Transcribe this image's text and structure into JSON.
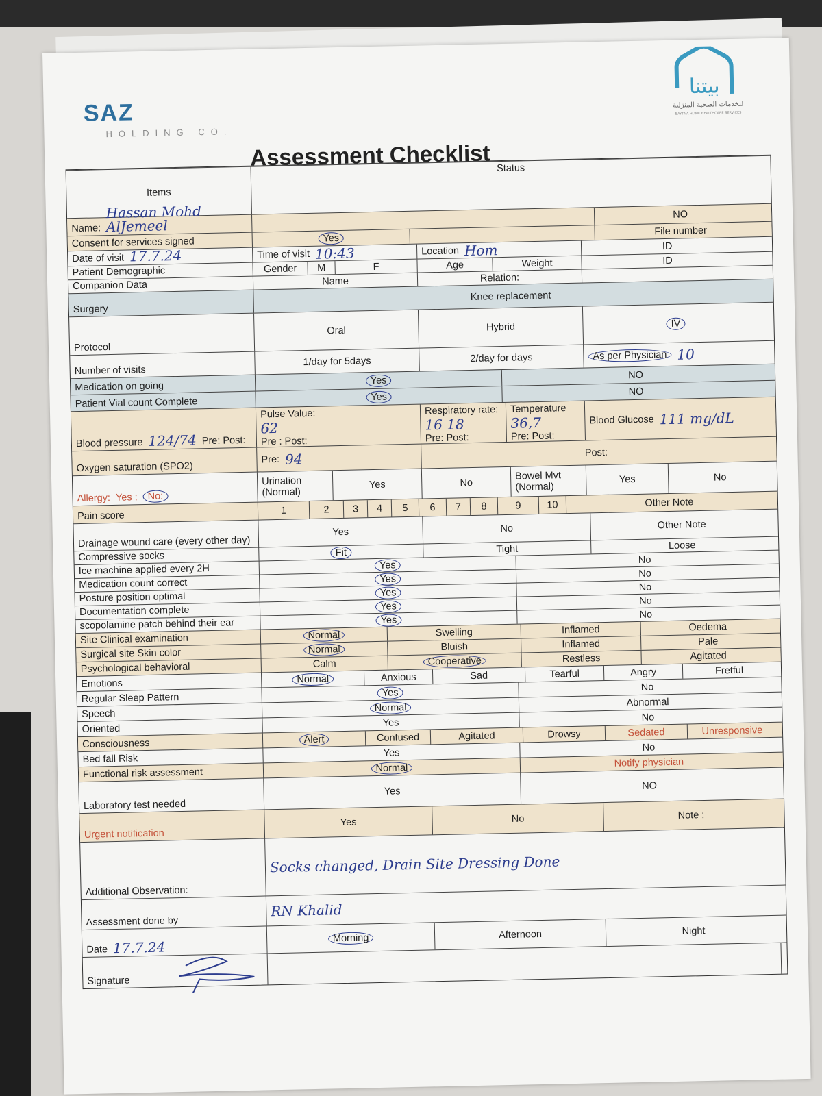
{
  "header": {
    "company": "SAZ",
    "company_sub": "HOLDING CO.",
    "partner_logo_text": "بيتنا للخدمات الصحية المنزلية BAYTNA HOME HEALTHCARE SERVICES",
    "title": "Assessment Checklist",
    "col_items": "Items",
    "col_status": "Status"
  },
  "colors": {
    "handwriting": "#2d3d8e",
    "beige": "#efe3cc",
    "blue": "#d3dde0",
    "warning": "#c4523a",
    "brand": "#2e6f9e"
  },
  "rows": [
    {
      "label": "Name:",
      "label_hw": "Hassan Mohd AlJemeel",
      "bg": "beige",
      "cells": [
        {
          "text": ""
        },
        {
          "text": "NO"
        }
      ]
    },
    {
      "label": "Consent for services signed",
      "bg": "beige",
      "cells": [
        {
          "text": "Yes",
          "circled": true
        },
        {
          "text": ""
        },
        {
          "text": "File number"
        }
      ]
    },
    {
      "label": "Date of visit",
      "label_hw": "17.7.24",
      "cells": [
        {
          "text": "Time of visit",
          "hw": "10:43"
        },
        {
          "text": "Location",
          "hw": "Hom"
        },
        {
          "text": "ID"
        }
      ]
    },
    {
      "label": "Patient Demographic",
      "cells": [
        {
          "text": "Gender"
        },
        {
          "text": "M"
        },
        {
          "text": "F"
        },
        {
          "text": "Age"
        },
        {
          "text": "Weight"
        },
        {
          "text": "ID"
        }
      ]
    },
    {
      "label": "Companion Data",
      "cells": [
        {
          "text": "Name"
        },
        {
          "text": "Relation:"
        },
        {
          "text": ""
        }
      ]
    },
    {
      "label": "Surgery",
      "bg": "blue",
      "cells": [
        {
          "text": "Knee replacement"
        }
      ]
    },
    {
      "label": "Protocol",
      "cells": [
        {
          "text": "Oral"
        },
        {
          "text": "Hybrid"
        },
        {
          "text": "IV",
          "circled": true
        }
      ]
    },
    {
      "label": "Number of visits",
      "cells": [
        {
          "text": "1/day for 5days"
        },
        {
          "text": "2/day  for   days"
        },
        {
          "text": "As per Physician",
          "circled": true,
          "hw": "10"
        }
      ]
    },
    {
      "label": "Medication on going",
      "bg": "blue",
      "cells": [
        {
          "text": "Yes",
          "circled": true
        },
        {
          "text": "NO"
        }
      ]
    },
    {
      "label": "Patient Vial count Complete",
      "bg": "blue",
      "cells": [
        {
          "text": "Yes",
          "circled": true
        },
        {
          "text": "NO"
        }
      ]
    },
    {
      "label": "Blood pressure",
      "label_hw": "124/74",
      "label_extra": "Pre:            Post:",
      "bg": "beige",
      "cells": [
        {
          "text": "Pulse Value:",
          "hw": "62",
          "extra": "Pre :          Post:"
        },
        {
          "text": "Respiratory rate:",
          "hw": "16  18",
          "extra": "Pre:   Post:"
        },
        {
          "text": "Temperature",
          "hw": "36,7",
          "extra": "Pre:  Post:"
        },
        {
          "text": "Blood Glucose",
          "hw": "111 mg/dL"
        }
      ]
    },
    {
      "label": "Oxygen saturation (SPO2)",
      "bg": "beige",
      "cells": [
        {
          "text": "Pre:",
          "hw": "94"
        },
        {
          "text": "Post:"
        }
      ]
    },
    {
      "label": "Allergy:",
      "label_extra": "Yes :",
      "label_circled": "No:",
      "label_red": true,
      "cells": [
        {
          "text": "Urination (Normal)"
        },
        {
          "text": "Yes"
        },
        {
          "text": "No"
        },
        {
          "text": "Bowel Mvt (Normal)"
        },
        {
          "text": "Yes"
        },
        {
          "text": "No"
        }
      ]
    },
    {
      "label": "Pain score",
      "bg": "beige",
      "cells": [
        {
          "text": "1"
        },
        {
          "text": "2"
        },
        {
          "text": "3"
        },
        {
          "text": "4"
        },
        {
          "text": "5"
        },
        {
          "text": "6"
        },
        {
          "text": "7"
        },
        {
          "text": "8"
        },
        {
          "text": "9"
        },
        {
          "text": "10"
        },
        {
          "text": "Other Note"
        }
      ]
    },
    {
      "label": "Drainage wound care (every other day)",
      "cells": [
        {
          "text": "Yes"
        },
        {
          "text": "No"
        },
        {
          "text": "Other Note"
        }
      ]
    },
    {
      "label": "Compressive socks",
      "cells": [
        {
          "text": "Fit",
          "circled": true
        },
        {
          "text": "Tight"
        },
        {
          "text": "Loose"
        }
      ]
    },
    {
      "label": "Ice machine applied every 2H",
      "cells": [
        {
          "text": "Yes",
          "circled": true
        },
        {
          "text": "No"
        }
      ]
    },
    {
      "label": "Medication count correct",
      "cells": [
        {
          "text": "Yes",
          "circled": true
        },
        {
          "text": "No"
        }
      ]
    },
    {
      "label": "Posture position optimal",
      "cells": [
        {
          "text": "Yes",
          "circled": true
        },
        {
          "text": "No"
        }
      ]
    },
    {
      "label": "Documentation complete",
      "cells": [
        {
          "text": "Yes",
          "circled": true
        },
        {
          "text": "No"
        }
      ]
    },
    {
      "label": "scopolamine patch behind their ear",
      "cells": [
        {
          "text": "Yes",
          "circled": true
        },
        {
          "text": "No"
        }
      ]
    },
    {
      "label": "Site Clinical examination",
      "bg": "beige",
      "cells": [
        {
          "text": "Normal",
          "circled": true
        },
        {
          "text": "Swelling"
        },
        {
          "text": "Inflamed"
        },
        {
          "text": "Oedema"
        }
      ]
    },
    {
      "label": "Surgical site Skin color",
      "bg": "beige",
      "cells": [
        {
          "text": "Normal",
          "circled": true
        },
        {
          "text": "Bluish"
        },
        {
          "text": "Inflamed"
        },
        {
          "text": "Pale"
        }
      ]
    },
    {
      "label": "Psychological behavioral",
      "bg": "beige",
      "cells": [
        {
          "text": "Calm"
        },
        {
          "text": "Cooperative",
          "circled": true
        },
        {
          "text": "Restless"
        },
        {
          "text": "Agitated"
        }
      ]
    },
    {
      "label": "Emotions",
      "cells": [
        {
          "text": "Normal",
          "circled": true
        },
        {
          "text": "Anxious"
        },
        {
          "text": "Sad"
        },
        {
          "text": "Tearful"
        },
        {
          "text": "Angry"
        },
        {
          "text": "Fretful"
        }
      ]
    },
    {
      "label": "Regular Sleep Pattern",
      "cells": [
        {
          "text": "Yes",
          "circled": true
        },
        {
          "text": "No"
        }
      ]
    },
    {
      "label": "Speech",
      "cells": [
        {
          "text": "Normal",
          "circled": true
        },
        {
          "text": "Abnormal"
        }
      ]
    },
    {
      "label": "Oriented",
      "cells": [
        {
          "text": "Yes"
        },
        {
          "text": "No"
        }
      ]
    },
    {
      "label": "Consciousness",
      "bg": "beige",
      "cells": [
        {
          "text": "Alert",
          "circled": true
        },
        {
          "text": "Confused"
        },
        {
          "text": "Agitated"
        },
        {
          "text": "Drowsy"
        },
        {
          "text": "Sedated",
          "red": true
        },
        {
          "text": "Unresponsive",
          "red": true
        }
      ]
    },
    {
      "label": "Bed fall Risk",
      "cells": [
        {
          "text": "Yes"
        },
        {
          "text": "No"
        }
      ]
    },
    {
      "label": "Functional risk assessment",
      "bg": "beige",
      "cells": [
        {
          "text": "Normal",
          "circled": true
        },
        {
          "text": "Notify physician",
          "red": true
        }
      ]
    },
    {
      "label": "Laboratory test needed",
      "cells": [
        {
          "text": "Yes"
        },
        {
          "text": "NO"
        }
      ]
    },
    {
      "label": "Urgent notification",
      "label_red": true,
      "bg": "beige",
      "cells": [
        {
          "text": "Yes"
        },
        {
          "text": "No"
        },
        {
          "text": "Note :"
        }
      ]
    },
    {
      "label": "Additional Observation:",
      "inline_hw": "Socks changed, Drain Site Dressing Done",
      "cells": []
    },
    {
      "label": "Assessment done by",
      "cells": [
        {
          "text": "",
          "hw": "RN Khalid"
        }
      ]
    },
    {
      "label": "Date",
      "label_hw": "17.7.24",
      "cells": [
        {
          "text": "Morning",
          "circled": true
        },
        {
          "text": "Afternoon"
        },
        {
          "text": "Night"
        }
      ]
    },
    {
      "label": "Signature",
      "cells": [
        {
          "text": ""
        }
      ]
    }
  ]
}
